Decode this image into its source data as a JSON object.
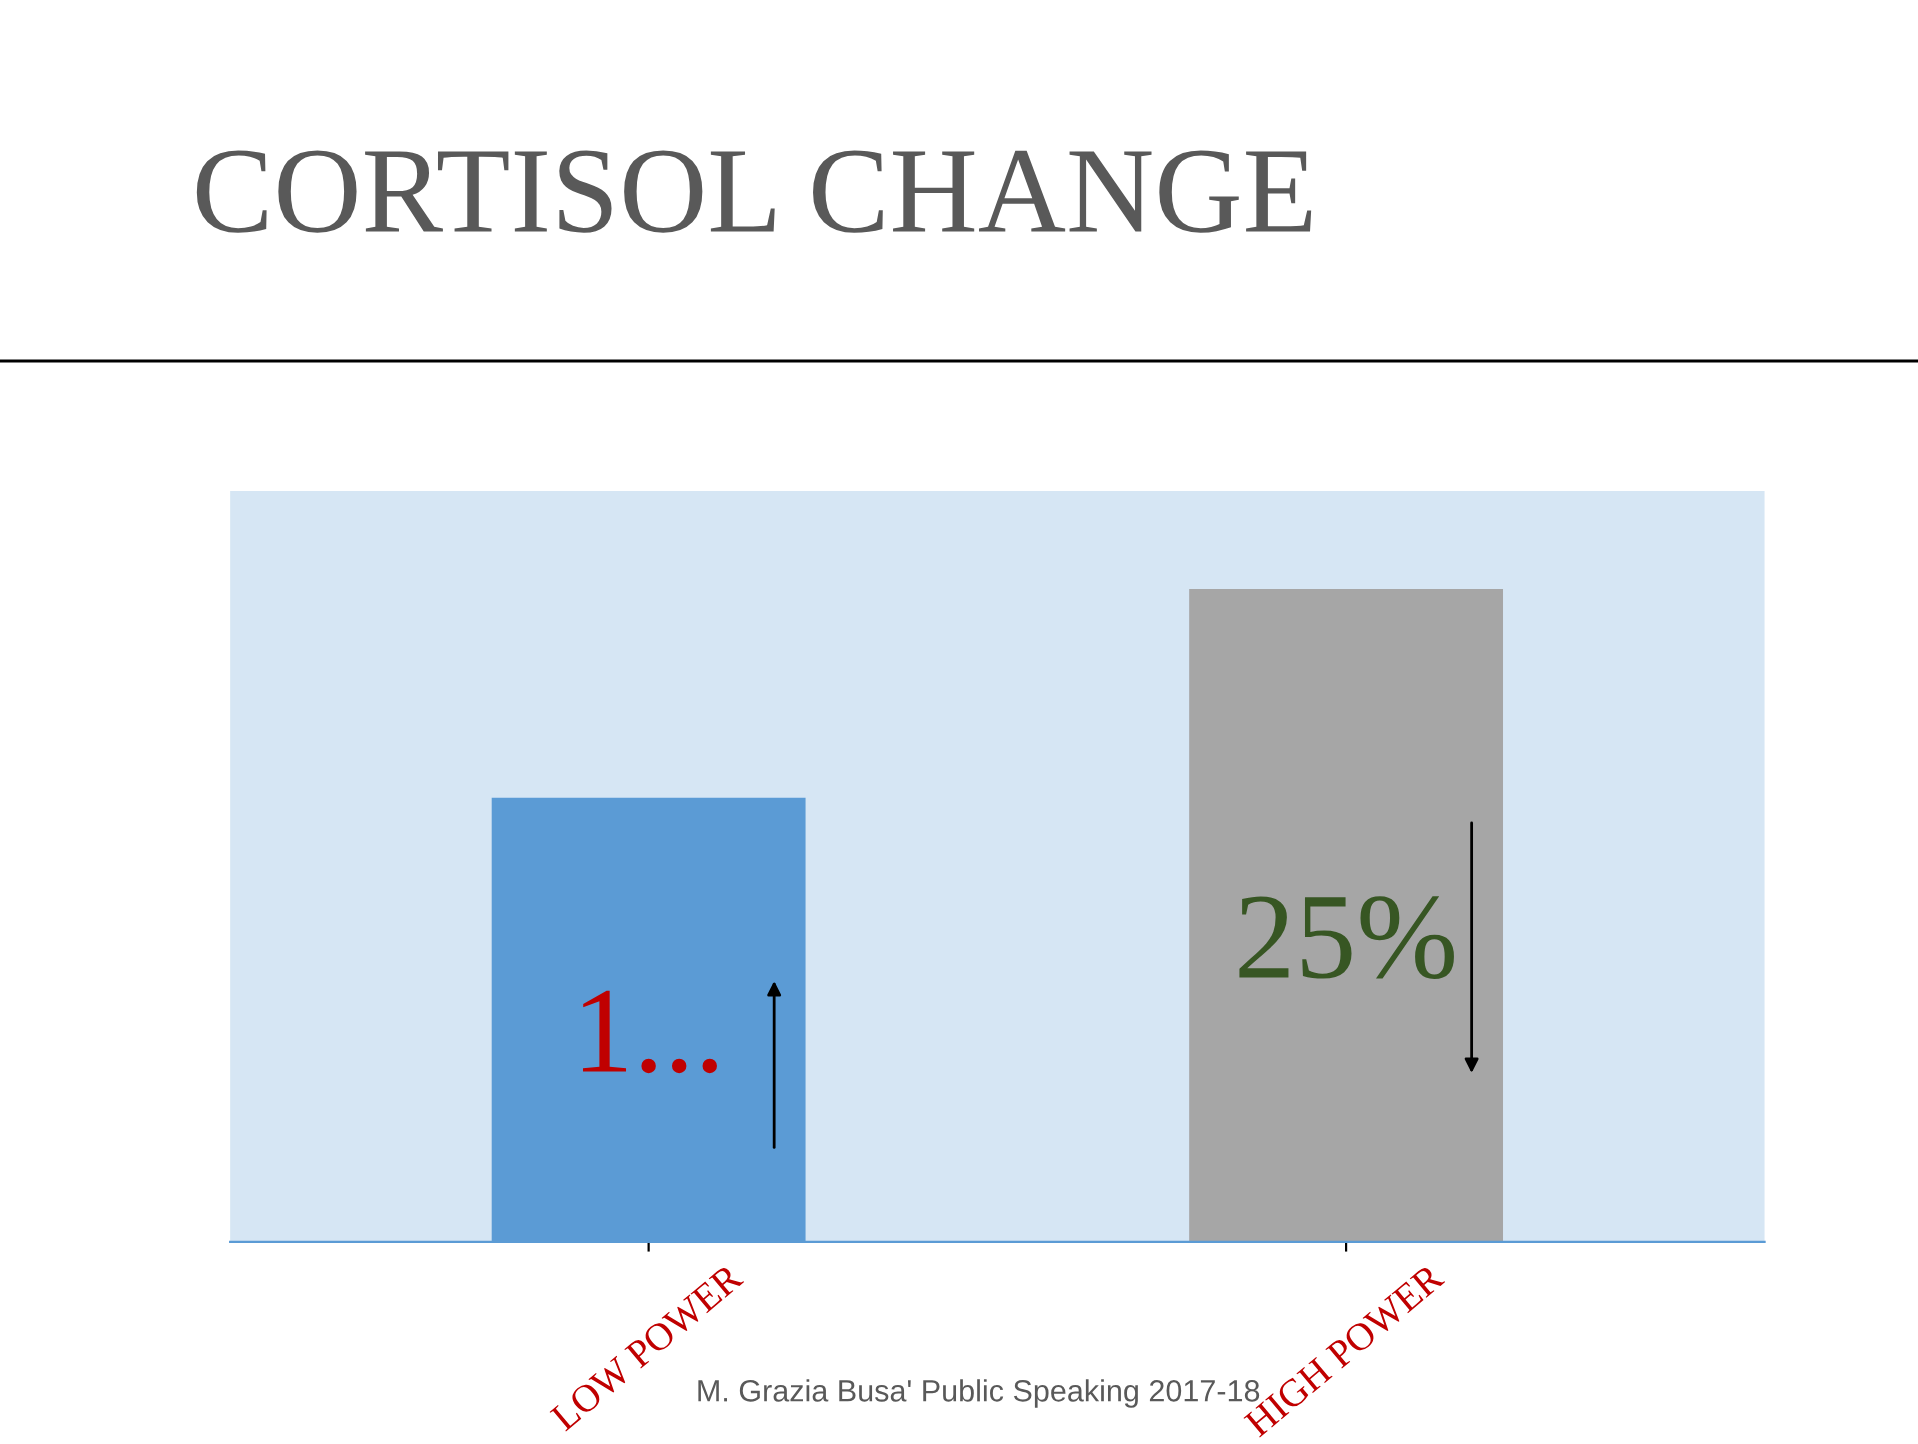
{
  "chart_data": {
    "type": "bar",
    "title": "CORTISOL CHANGE",
    "categories": [
      "LOW POWER",
      "HIGH POWER"
    ],
    "values": [
      17,
      25
    ],
    "colors": [
      "#5b9bd5",
      "#a6a6a6"
    ],
    "value_labels": [
      "1...",
      "25%"
    ],
    "annotations": [
      "M. Grazia Busa' Public Speaking 2017-18"
    ]
  }
}
